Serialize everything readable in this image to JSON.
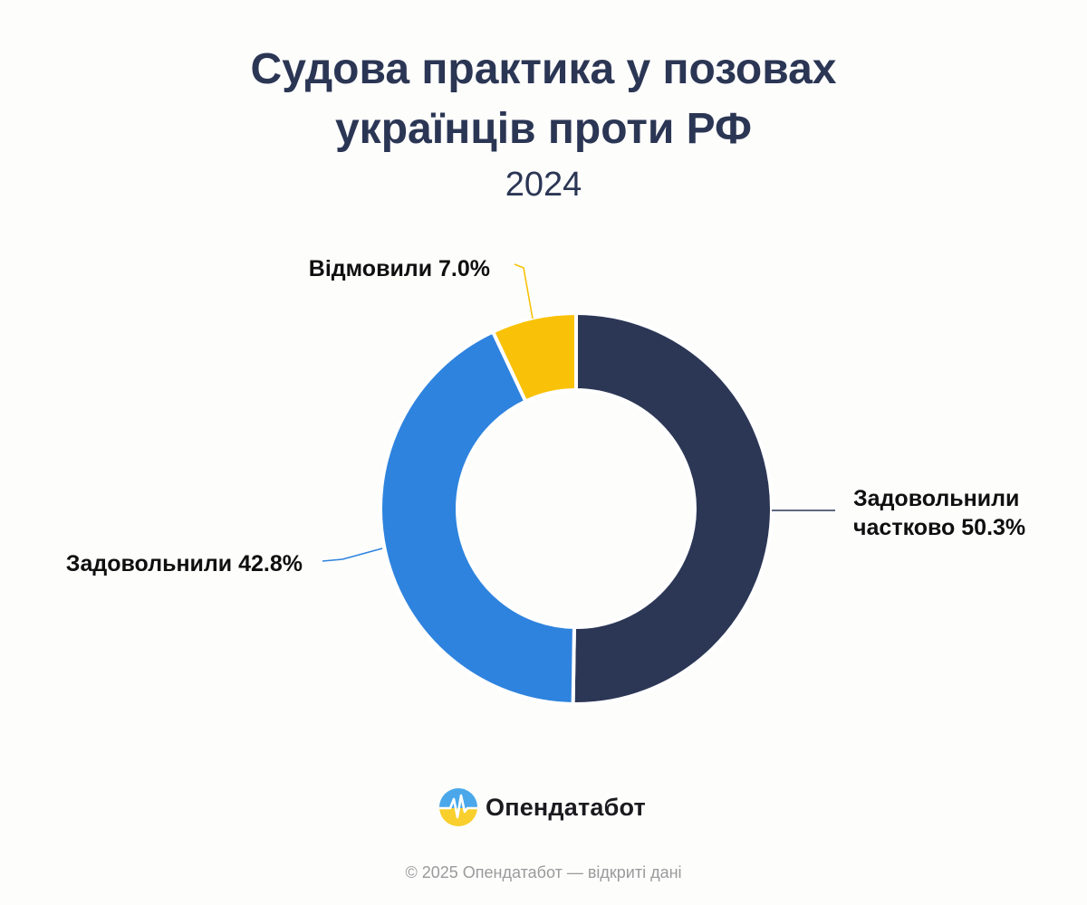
{
  "header": {
    "title_line1": "Судова практика у позовах",
    "title_line2": "українців проти РФ",
    "subtitle": "2024"
  },
  "chart_data": {
    "type": "pie",
    "style": "donut",
    "title": "Судова практика у позовах українців проти РФ",
    "subtitle": "2024",
    "slices": [
      {
        "label_lines": [
          "Задовольнили",
          "частково 50.3%"
        ],
        "category": "Задовольнили частково",
        "value": 50.3,
        "color": "#2c3756"
      },
      {
        "label_lines": [
          "Задовольнили 42.8%"
        ],
        "category": "Задовольнили",
        "value": 42.8,
        "color": "#2e83de"
      },
      {
        "label_lines": [
          "Відмовили 7.0%"
        ],
        "category": "Відмовили",
        "value": 7.0,
        "color": "#f9c208"
      }
    ],
    "unit": "%"
  },
  "brand": {
    "name": "Опендатабот",
    "logo_colors": [
      "#4aa8ea",
      "#f8cf2c"
    ]
  },
  "footer": {
    "text": "© 2025 Опендатабот — відкриті дані"
  }
}
